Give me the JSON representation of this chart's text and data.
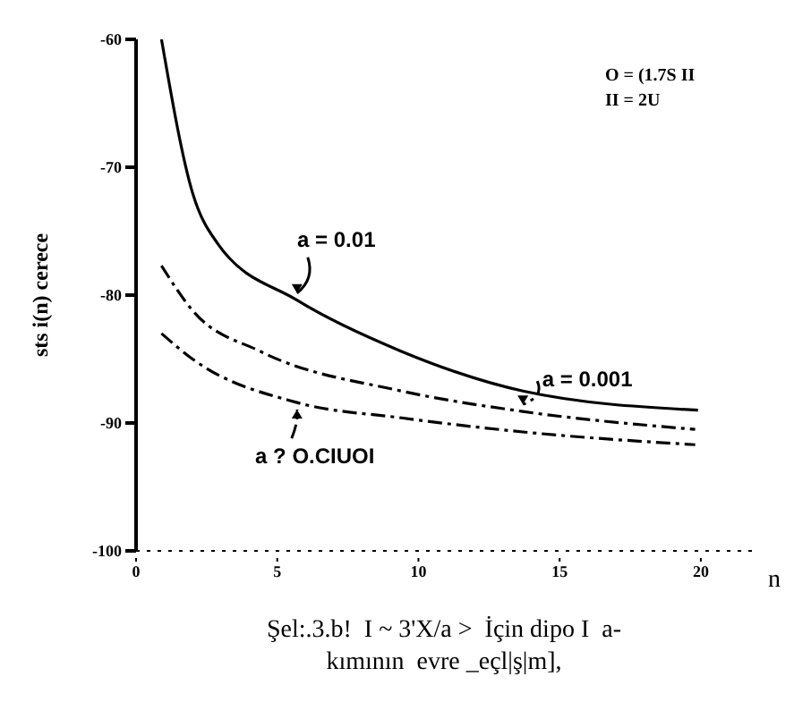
{
  "chart_data": {
    "type": "line",
    "ylabel": "sts i(n) cerece",
    "xlabel": "n",
    "xlim": [
      0,
      22
    ],
    "xticks": [
      0,
      5,
      10,
      15,
      20
    ],
    "ylim": [
      -100,
      -60
    ],
    "yticks": [
      -100,
      -90,
      -80,
      -70,
      -60
    ],
    "marker": "none",
    "series": [
      {
        "name": "a = 0.01",
        "color": "#000000",
        "line_style": "solid",
        "x": [
          0.9,
          2,
          2.9,
          5.7,
          9.4,
          13.7,
          19.9
        ],
        "values": [
          -60,
          -72,
          -76,
          -80.4,
          -84.4,
          -87.5,
          -89
        ]
      },
      {
        "name": "a = 0.001",
        "color": "#000000",
        "line_style": "dashed",
        "x": [
          0.9,
          2,
          4.4,
          9.4,
          13.7,
          19.8
        ],
        "values": [
          -77.7,
          -81.2,
          -84.4,
          -87.5,
          -89.1,
          -90.5
        ]
      },
      {
        "name": "a ? O.CIUOI",
        "color": "#000000",
        "line_style": "dashed",
        "x": [
          0.9,
          2,
          5.7,
          9.4,
          13.7,
          19.8
        ],
        "values": [
          -83,
          -85,
          -88.4,
          -89.6,
          -90.7,
          -91.7
        ]
      }
    ],
    "annotations": [
      "O = (1.7S II",
      "II = 2U",
      "Şel:.3.b!  I ~ 3'X/a >  İçin dipo I  a-",
      "kımının  evre _eçl|ş|m],"
    ]
  }
}
